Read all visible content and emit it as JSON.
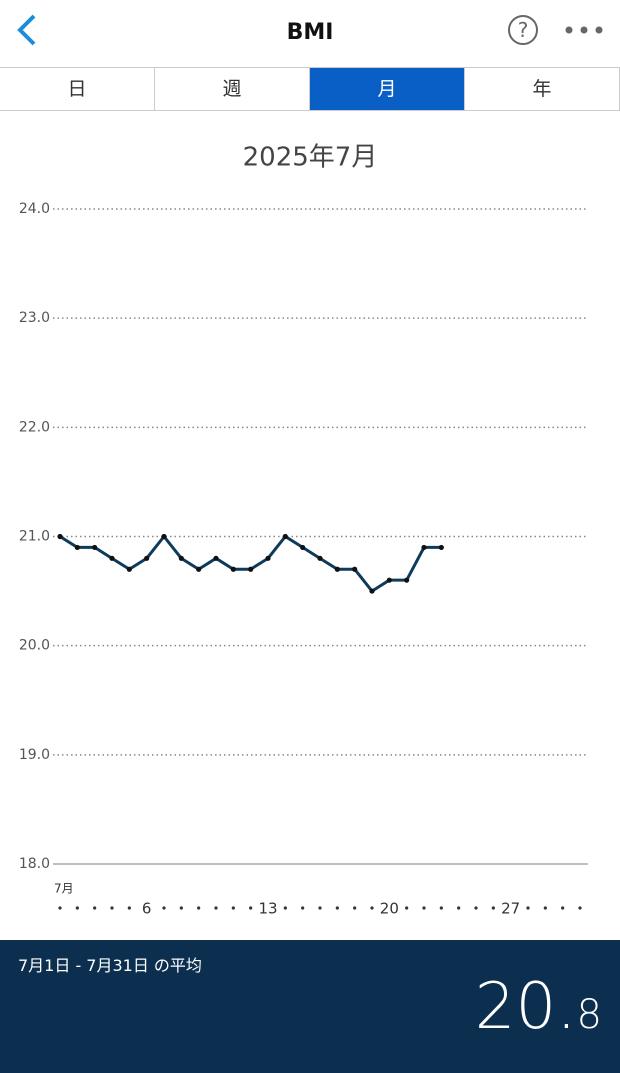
{
  "header": {
    "title": "BMI"
  },
  "tabs": {
    "items": [
      "日",
      "週",
      "月",
      "年"
    ],
    "active": 2
  },
  "chart_data": {
    "type": "line",
    "title": "2025年7月",
    "x": [
      1,
      2,
      3,
      4,
      5,
      6,
      7,
      8,
      9,
      10,
      11,
      12,
      13,
      14,
      15,
      16,
      17,
      18,
      19,
      20,
      21,
      22,
      23,
      24,
      25,
      26,
      27,
      28,
      29,
      30,
      31
    ],
    "series": [
      {
        "name": "BMI",
        "color": "#0d3b5c",
        "values": [
          21.0,
          20.9,
          20.9,
          20.8,
          20.7,
          20.8,
          21.0,
          20.8,
          20.7,
          20.8,
          20.7,
          20.7,
          20.8,
          21.0,
          20.9,
          20.8,
          20.7,
          20.7,
          20.5,
          20.6,
          20.6,
          20.9,
          20.9,
          null,
          null,
          null,
          null,
          null,
          null,
          null,
          null
        ]
      }
    ],
    "xlim": [
      1,
      31
    ],
    "xticks": [
      {
        "value": 1,
        "label": "7月"
      },
      6,
      13,
      20,
      27
    ],
    "ylim": [
      18,
      24
    ],
    "yticks": [
      {
        "value": 18,
        "label": "18.0"
      },
      {
        "value": 19,
        "label": "19.0"
      },
      {
        "value": 20,
        "label": "20.0"
      },
      {
        "value": 21,
        "label": "21.0"
      },
      {
        "value": 22,
        "label": "22.0"
      },
      {
        "value": 23,
        "label": "23.0"
      },
      {
        "value": 24,
        "label": "24.0"
      }
    ],
    "grid": true
  },
  "footer": {
    "label": "7月1日 - 7月31日 の平均",
    "average_main": "20.",
    "average_sub": "8"
  }
}
